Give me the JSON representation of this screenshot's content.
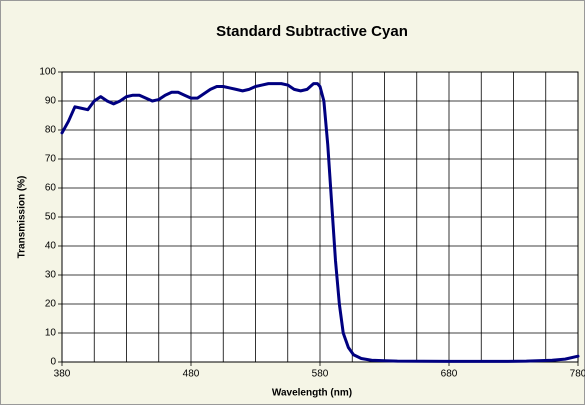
{
  "chart_data": {
    "type": "line",
    "title": "Standard Subtractive Cyan",
    "x_label": "Wavelength (nm)",
    "y_label": "Transmission (%)",
    "xlim": [
      380,
      780
    ],
    "ylim": [
      0,
      100
    ],
    "xticks": [
      380,
      480,
      580,
      680,
      780
    ],
    "xgrid": [
      405,
      430,
      455,
      505,
      530,
      555,
      605,
      630,
      655,
      705,
      730,
      755
    ],
    "yticks": [
      0,
      10,
      20,
      30,
      40,
      50,
      60,
      70,
      80,
      90,
      100
    ],
    "grid": true,
    "x": [
      380,
      385,
      390,
      395,
      400,
      405,
      410,
      415,
      420,
      425,
      430,
      435,
      440,
      445,
      450,
      455,
      460,
      465,
      470,
      475,
      480,
      485,
      490,
      495,
      500,
      505,
      510,
      515,
      520,
      525,
      530,
      535,
      540,
      545,
      550,
      555,
      560,
      565,
      570,
      575,
      578,
      580,
      583,
      586,
      589,
      592,
      595,
      598,
      602,
      606,
      612,
      620,
      640,
      680,
      720,
      740,
      760,
      770,
      780
    ],
    "series": [
      {
        "name": "Standard Subtractive Cyan",
        "color": "#000080",
        "values": [
          79,
          83,
          88,
          87.5,
          87,
          90,
          91.5,
          90,
          89,
          90,
          91.5,
          92,
          92,
          91,
          90,
          90.5,
          92,
          93,
          93,
          92,
          91,
          91,
          92.5,
          94,
          95,
          95,
          94.5,
          94,
          93.5,
          94,
          95,
          95.5,
          96,
          96,
          96,
          95.5,
          94,
          93.5,
          94,
          96,
          96,
          95,
          90,
          75,
          55,
          35,
          20,
          10,
          5,
          2.5,
          1.2,
          0.6,
          0.3,
          0.2,
          0.2,
          0.3,
          0.6,
          1,
          2
        ]
      }
    ]
  }
}
